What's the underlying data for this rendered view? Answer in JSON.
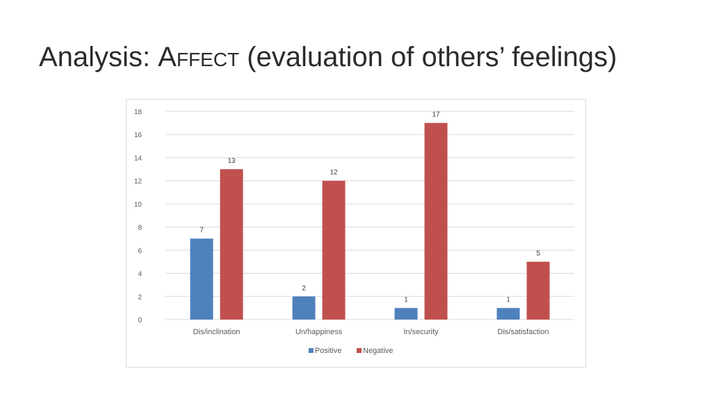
{
  "slide": {
    "title_prefix": "Analysis: ",
    "title_caps": "Affect",
    "title_suffix": " (evaluation of others’ feelings)"
  },
  "colors": {
    "positive": "#4f81bd",
    "negative": "#c0504d",
    "gridline": "#d9d9d9",
    "axis_text": "#595959"
  },
  "chart_data": {
    "type": "bar",
    "title": "",
    "xlabel": "",
    "ylabel": "",
    "categories": [
      "Dis/inclination",
      "Un/happiness",
      "In/security",
      "Dis/satisfaction"
    ],
    "series": [
      {
        "name": "Positive",
        "values": [
          7,
          2,
          1,
          1
        ]
      },
      {
        "name": "Negative",
        "values": [
          13,
          12,
          17,
          5
        ]
      }
    ],
    "ylim": [
      0,
      18
    ],
    "yticks": [
      0,
      2,
      4,
      6,
      8,
      10,
      12,
      14,
      16,
      18
    ],
    "grid": true,
    "data_labels": true,
    "legend_position": "bottom"
  }
}
